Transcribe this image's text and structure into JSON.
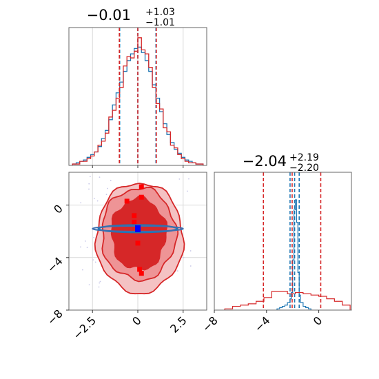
{
  "chart_data": [
    {
      "type": "histogram",
      "panel": "marginal-x",
      "title": "−0.01",
      "title_sup": "+1.03",
      "title_sub": "−1.01",
      "xlim": [
        -3.8,
        3.8
      ],
      "xticks": [
        -2.5,
        0.0,
        2.5
      ],
      "grid": true,
      "quantiles": {
        "red": [
          -1.02,
          0.0,
          1.02
        ],
        "blue": [
          -1.0,
          0.0,
          1.0
        ]
      },
      "series": [
        {
          "color": "#1f77b4",
          "bin_edges": [
            -3.6,
            -3.4,
            -3.2,
            -3.0,
            -2.8,
            -2.6,
            -2.4,
            -2.2,
            -2.0,
            -1.8,
            -1.6,
            -1.4,
            -1.2,
            -1.0,
            -0.8,
            -0.6,
            -0.4,
            -0.2,
            0.0,
            0.2,
            0.4,
            0.6,
            0.8,
            1.0,
            1.2,
            1.4,
            1.6,
            1.8,
            2.0,
            2.2,
            2.4,
            2.6,
            2.8,
            3.0,
            3.2,
            3.4,
            3.6
          ],
          "values": [
            1,
            2,
            3,
            4,
            6,
            8,
            10,
            14,
            20,
            26,
            34,
            45,
            54,
            62,
            70,
            78,
            83,
            87,
            88,
            84,
            78,
            70,
            60,
            50,
            40,
            31,
            23,
            17,
            12,
            9,
            6,
            4,
            3,
            2,
            1,
            1
          ]
        },
        {
          "color": "#d62728",
          "bin_edges": [
            -3.6,
            -3.4,
            -3.2,
            -3.0,
            -2.8,
            -2.6,
            -2.4,
            -2.2,
            -2.0,
            -1.8,
            -1.6,
            -1.4,
            -1.2,
            -1.0,
            -0.8,
            -0.6,
            -0.4,
            -0.2,
            0.0,
            0.2,
            0.4,
            0.6,
            0.8,
            1.0,
            1.2,
            1.4,
            1.6,
            1.8,
            2.0,
            2.2,
            2.4,
            2.6,
            2.8,
            3.0,
            3.2,
            3.4,
            3.6
          ],
          "values": [
            1,
            1,
            3,
            3,
            5,
            7,
            10,
            15,
            18,
            24,
            36,
            41,
            50,
            58,
            74,
            81,
            80,
            85,
            95,
            86,
            83,
            73,
            58,
            46,
            42,
            28,
            25,
            15,
            13,
            8,
            5,
            3,
            2,
            2,
            1,
            1
          ]
        }
      ]
    },
    {
      "type": "contour",
      "panel": "joint",
      "xlim": [
        -3.8,
        3.8
      ],
      "ylim": [
        -8,
        2.5
      ],
      "xticks": [
        -2.5,
        0.0,
        2.5
      ],
      "yticks": [
        -8,
        -4,
        0
      ],
      "grid": true,
      "red_levels": [
        {
          "fill": "#f4c2c3",
          "cx": 0.1,
          "cy": -2.5,
          "rx": 2.4,
          "ry": 4.2
        },
        {
          "fill": "#ee9496",
          "cx": 0.05,
          "cy": -2.2,
          "rx": 2.05,
          "ry": 3.5
        },
        {
          "fill": "#d62728",
          "cx": 0.05,
          "cy": -2.2,
          "rx": 1.5,
          "ry": 2.7
        }
      ],
      "blue_level": {
        "cx": 0.0,
        "cy": -1.8,
        "rx": 2.5,
        "ry": 0.28
      },
      "red_points": [
        [
          0.2,
          1.4
        ],
        [
          -0.6,
          0.3
        ],
        [
          0.2,
          0.6
        ],
        [
          -0.2,
          -0.8
        ],
        [
          0.0,
          -2.9
        ],
        [
          0.2,
          -5.2
        ],
        [
          -0.2,
          -1.3
        ],
        [
          0.1,
          -4.9
        ]
      ],
      "blue_points": [
        [
          0.0,
          -1.8
        ]
      ]
    },
    {
      "type": "histogram",
      "panel": "marginal-y",
      "title": "−2.04",
      "title_sup": "+2.19",
      "title_sub": "−2.20",
      "xlim": [
        -8,
        2.5
      ],
      "xticks": [
        -8,
        -4,
        0
      ],
      "quantiles": {
        "red": [
          -4.24,
          -2.04,
          0.15
        ],
        "blue": [
          -2.2,
          -1.85,
          -1.5
        ]
      },
      "series": [
        {
          "color": "#1f77b4",
          "bin_edges": [
            -3.2,
            -3.0,
            -2.8,
            -2.6,
            -2.4,
            -2.2,
            -2.1,
            -2.0,
            -1.9,
            -1.8,
            -1.7,
            -1.6,
            -1.5,
            -1.4,
            -1.2,
            -1.0,
            -0.8,
            -0.6
          ],
          "values": [
            1,
            2,
            3,
            4,
            6,
            9,
            14,
            40,
            80,
            88,
            70,
            30,
            12,
            6,
            3,
            2,
            1
          ]
        },
        {
          "color": "#d62728",
          "bin_edges": [
            -7.2,
            -6.6,
            -6.0,
            -5.4,
            -4.8,
            -4.2,
            -3.6,
            -3.0,
            -2.4,
            -1.8,
            -1.2,
            -0.6,
            0.0,
            0.6,
            1.2,
            1.8,
            2.4
          ],
          "values": [
            1,
            3,
            4,
            5,
            7,
            10,
            15,
            15,
            13,
            14,
            13,
            12,
            11,
            9,
            7,
            4
          ]
        }
      ]
    }
  ]
}
